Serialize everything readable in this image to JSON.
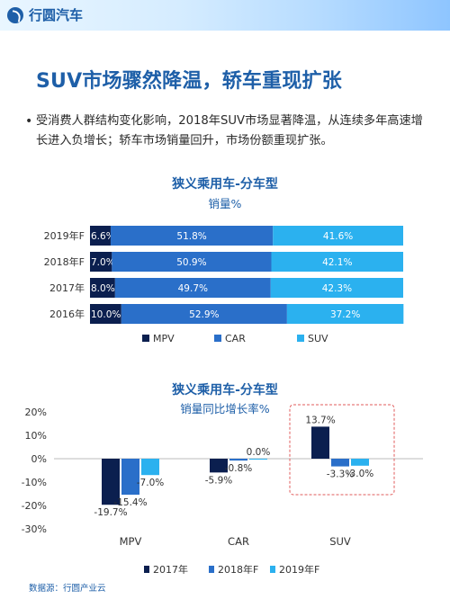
{
  "brand": {
    "name": "行圆汽车"
  },
  "page": {
    "title": "SUV市场骤然降温，轿车重现扩张",
    "bullet": "受消费人群结构变化影响，2018年SUV市场显著降温，从连续多年高速增长进入负增长；轿车市场销量回升，市场份额重现扩张。",
    "source": "数据源：行圆产业云"
  },
  "colors": {
    "mpv": "#0b1f4f",
    "car": "#2a6fc9",
    "suv": "#2bb1ef",
    "brand": "#1e5fa8",
    "highlight_border": "#e05b5b"
  },
  "chart_data": [
    {
      "type": "bar",
      "orientation": "horizontal",
      "stacked": true,
      "percent_stacked": true,
      "title": "狭义乘用车-分车型",
      "subtitle": "销量%",
      "categories": [
        "2019年F",
        "2018年F",
        "2017年",
        "2016年"
      ],
      "series": [
        {
          "name": "MPV",
          "values": [
            6.6,
            7.0,
            8.0,
            10.0
          ],
          "labels": [
            "6.6%",
            "7.0%",
            "8.0%",
            "10.0%"
          ]
        },
        {
          "name": "CAR",
          "values": [
            51.8,
            50.9,
            49.7,
            52.9
          ],
          "labels": [
            "51.8%",
            "50.9%",
            "49.7%",
            "52.9%"
          ]
        },
        {
          "name": "SUV",
          "values": [
            41.6,
            42.1,
            42.3,
            37.2
          ],
          "labels": [
            "41.6%",
            "42.1%",
            "42.3%",
            "37.2%"
          ]
        }
      ],
      "legend_position": "bottom"
    },
    {
      "type": "bar",
      "title": "狭义乘用车-分车型",
      "subtitle": "销量同比增长率%",
      "categories": [
        "MPV",
        "CAR",
        "SUV"
      ],
      "series": [
        {
          "name": "2017年",
          "values": [
            -19.7,
            -5.9,
            13.7
          ],
          "labels": [
            "-19.7%",
            "-5.9%",
            "13.7%"
          ]
        },
        {
          "name": "2018年F",
          "values": [
            -15.4,
            -0.8,
            -3.3
          ],
          "labels": [
            "-15.4%",
            "-0.8%",
            "-3.3%"
          ]
        },
        {
          "name": "2019年F",
          "values": [
            -7.0,
            0.0,
            -3.0
          ],
          "labels": [
            "-7.0%",
            "0.0%",
            "-3.0%"
          ]
        }
      ],
      "ylim": [
        -30,
        20
      ],
      "yticks": [
        20,
        10,
        0,
        -10,
        -20,
        -30
      ],
      "ytick_labels": [
        "20%",
        "10%",
        "0%",
        "-10%",
        "-20%",
        "-30%"
      ],
      "highlight_category": "SUV",
      "legend_position": "bottom"
    }
  ]
}
